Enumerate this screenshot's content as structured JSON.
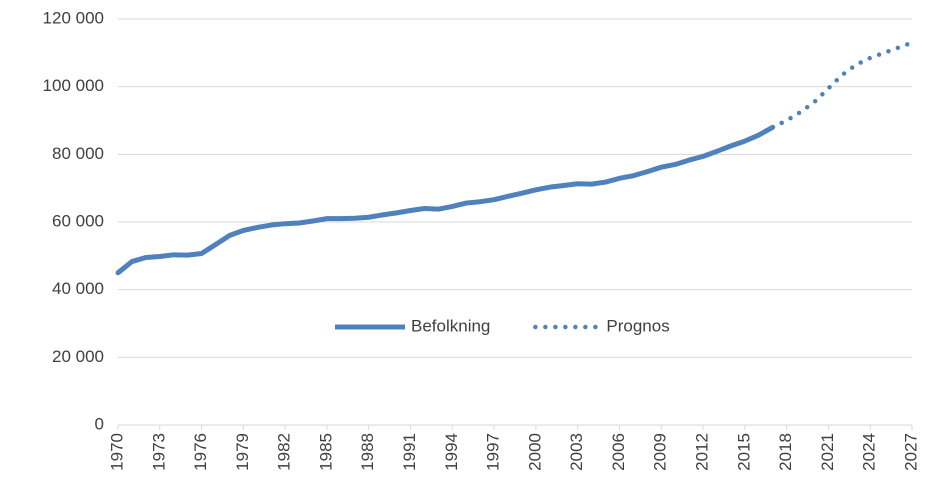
{
  "chart_data": {
    "type": "line",
    "x": [
      1970,
      1971,
      1972,
      1973,
      1974,
      1975,
      1976,
      1977,
      1978,
      1979,
      1980,
      1981,
      1982,
      1983,
      1984,
      1985,
      1986,
      1987,
      1988,
      1989,
      1990,
      1991,
      1992,
      1993,
      1994,
      1995,
      1996,
      1997,
      1998,
      1999,
      2000,
      2001,
      2002,
      2003,
      2004,
      2005,
      2006,
      2007,
      2008,
      2009,
      2010,
      2011,
      2012,
      2013,
      2014,
      2015,
      2016,
      2017,
      2018,
      2019,
      2020,
      2021,
      2022,
      2023,
      2024,
      2025,
      2026,
      2027
    ],
    "xlim": [
      1970,
      2027
    ],
    "xticks": [
      1970,
      1973,
      1976,
      1979,
      1982,
      1985,
      1988,
      1991,
      1994,
      1997,
      2000,
      2003,
      2006,
      2009,
      2012,
      2015,
      2018,
      2021,
      2024,
      2027
    ],
    "ylim": [
      0,
      120000
    ],
    "yticks": [
      {
        "value": 0,
        "label": "0"
      },
      {
        "value": 20000,
        "label": "20 000"
      },
      {
        "value": 40000,
        "label": "40 000"
      },
      {
        "value": 60000,
        "label": "60 000"
      },
      {
        "value": 80000,
        "label": "80 000"
      },
      {
        "value": 100000,
        "label": "100 000"
      },
      {
        "value": 120000,
        "label": "120 000"
      }
    ],
    "grid": true,
    "legend": "center",
    "series": [
      {
        "name": "Befolkning",
        "color": "#4f81bd",
        "style": "solid",
        "values": [
          45000,
          48300,
          49500,
          49800,
          50300,
          50200,
          50700,
          53300,
          56000,
          57500,
          58400,
          59100,
          59500,
          59700,
          60300,
          61000,
          61000,
          61100,
          61400,
          62100,
          62700,
          63400,
          64000,
          63800,
          64600,
          65600,
          66000,
          66600,
          67600,
          68500,
          69500,
          70300,
          70800,
          71300,
          71200,
          71800,
          72900,
          73700,
          74900,
          76200,
          77000,
          78300,
          79400,
          80900,
          82500,
          83900,
          85700,
          88000,
          null,
          null,
          null,
          null,
          null,
          null,
          null,
          null,
          null,
          null
        ]
      },
      {
        "name": "Prognos",
        "color": "#4f81bd",
        "style": "dotted",
        "values": [
          null,
          null,
          null,
          null,
          null,
          null,
          null,
          null,
          null,
          null,
          null,
          null,
          null,
          null,
          null,
          null,
          null,
          null,
          null,
          null,
          null,
          null,
          null,
          null,
          null,
          null,
          null,
          null,
          null,
          null,
          null,
          null,
          null,
          null,
          null,
          null,
          null,
          null,
          null,
          null,
          null,
          null,
          null,
          null,
          null,
          null,
          null,
          88000,
          90000,
          92500,
          95500,
          99500,
          103500,
          106500,
          108500,
          110000,
          111500,
          113000
        ]
      }
    ]
  }
}
